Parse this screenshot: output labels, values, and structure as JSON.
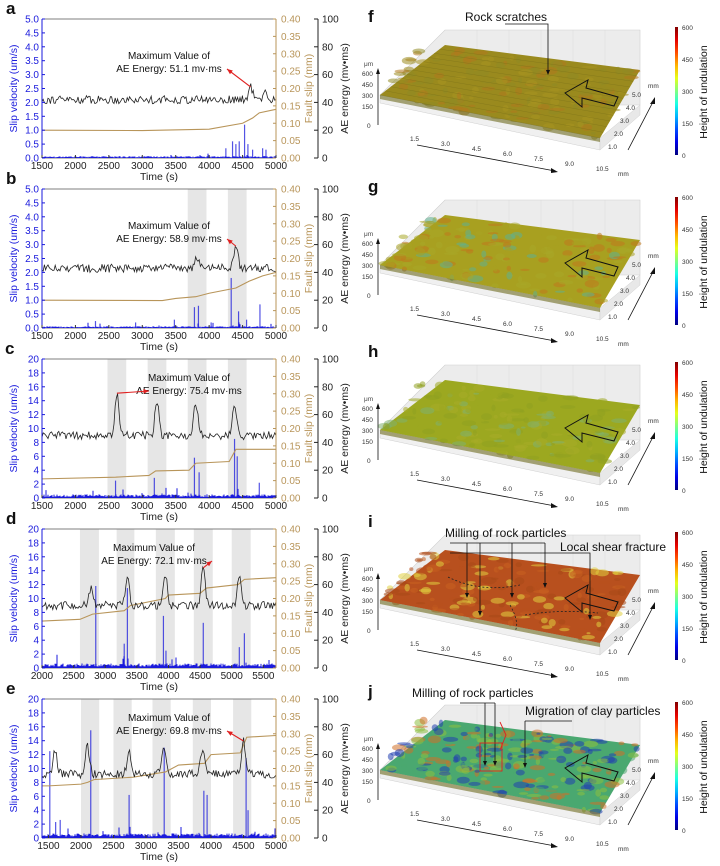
{
  "chart_data": [
    {
      "panel": "a",
      "type": "line",
      "title": "",
      "xlabel": "Time (s)",
      "ylabel_left": "Slip velocity (um/s)",
      "ylabel_right1": "Fault slip (mm)",
      "ylabel_right2": "AE energy (mv•ms)",
      "xlim": [
        1500,
        5000
      ],
      "x_ticks": [
        "1500",
        "2000",
        "2500",
        "3000",
        "3500",
        "4000",
        "4500",
        "5000"
      ],
      "ylim_left": [
        0,
        5.0
      ],
      "y_ticks_left": [
        "0.0",
        "0.5",
        "1.0",
        "1.5",
        "2.0",
        "2.5",
        "3.0",
        "3.5",
        "4.0",
        "4.5",
        "5.0"
      ],
      "ylim_right1": [
        0,
        0.4
      ],
      "y_ticks_right1": [
        "0.00",
        "0.05",
        "0.10",
        "0.15",
        "0.20",
        "0.25",
        "0.30",
        "0.35",
        "0.40"
      ],
      "ylim_right2": [
        0,
        100
      ],
      "y_ticks_right2": [
        "0",
        "20",
        "40",
        "60",
        "80",
        "100"
      ],
      "shaded_bands": [],
      "annotation": {
        "line1": "Maximum Value of",
        "line2": "AE Energy: 51.1 mv·ms",
        "peak_x": 4620,
        "peak_value": 51.1
      },
      "series": [
        {
          "name": "Slip velocity",
          "color": "#1a1adc",
          "baseline": 0.05,
          "spikes": [
            [
              4250,
              0.35
            ],
            [
              4350,
              0.6
            ],
            [
              4400,
              0.5
            ],
            [
              4450,
              0.6
            ],
            [
              4530,
              1.2
            ],
            [
              4580,
              0.5
            ],
            [
              4650,
              0.3
            ],
            [
              4800,
              0.35
            ],
            [
              4850,
              0.3
            ]
          ]
        },
        {
          "name": "AE energy",
          "color": "#222222",
          "mean": 42,
          "noise": 3,
          "peaks": [
            [
              4620,
              51.1
            ],
            [
              4830,
              47
            ]
          ]
        },
        {
          "name": "Fault slip",
          "color": "#b8955a",
          "points": [
            [
              1500,
              0.08
            ],
            [
              3000,
              0.079
            ],
            [
              4000,
              0.083
            ],
            [
              4500,
              0.1
            ],
            [
              4650,
              0.115
            ],
            [
              4750,
              0.13
            ],
            [
              5000,
              0.14
            ]
          ]
        }
      ]
    },
    {
      "panel": "b",
      "type": "line",
      "xlabel": "Time (s)",
      "ylabel_left": "Slip velocity (um/s)",
      "ylabel_right1": "Fault slip (mm)",
      "ylabel_right2": "AE energy (mv•ms)",
      "xlim": [
        1500,
        5000
      ],
      "x_ticks": [
        "1500",
        "2000",
        "2500",
        "3000",
        "3500",
        "4000",
        "4500",
        "5000"
      ],
      "ylim_left": [
        0,
        5.0
      ],
      "y_ticks_left": [
        "0.0",
        "0.5",
        "1.0",
        "1.5",
        "2.0",
        "2.5",
        "3.0",
        "3.5",
        "4.0",
        "4.5",
        "5.0"
      ],
      "ylim_right1": [
        0,
        0.4
      ],
      "y_ticks_right1": [
        "0.00",
        "0.05",
        "0.10",
        "0.15",
        "0.20",
        "0.25",
        "0.30",
        "0.35",
        "0.40"
      ],
      "ylim_right2": [
        0,
        100
      ],
      "y_ticks_right2": [
        "0",
        "20",
        "40",
        "60",
        "80",
        "100"
      ],
      "shaded_bands": [
        [
          3680,
          3960
        ],
        [
          4280,
          4560
        ]
      ],
      "annotation": {
        "line1": "Maximum Value of",
        "line2": "AE Energy: 58.9 mv·ms",
        "peak_x": 4400,
        "peak_value": 58.9
      },
      "series": [
        {
          "name": "Slip velocity",
          "color": "#1a1adc",
          "baseline": 0.05,
          "spikes": [
            [
              2300,
              0.25
            ],
            [
              2900,
              0.2
            ],
            [
              3480,
              0.3
            ],
            [
              3780,
              0.75
            ],
            [
              3840,
              0.8
            ],
            [
              4030,
              0.2
            ],
            [
              4330,
              1.8
            ],
            [
              4440,
              0.6
            ],
            [
              4560,
              0.3
            ],
            [
              4760,
              0.85
            ]
          ]
        },
        {
          "name": "AE energy",
          "color": "#222222",
          "mean": 43,
          "noise": 3,
          "peaks": [
            [
              3810,
              52
            ],
            [
              4400,
              58.9
            ]
          ]
        },
        {
          "name": "Fault slip",
          "color": "#b8955a",
          "points": [
            [
              1500,
              0.08
            ],
            [
              3300,
              0.079
            ],
            [
              3500,
              0.085
            ],
            [
              3800,
              0.09
            ],
            [
              4000,
              0.1
            ],
            [
              4400,
              0.115
            ],
            [
              4600,
              0.135
            ],
            [
              4800,
              0.15
            ],
            [
              5000,
              0.16
            ]
          ]
        }
      ]
    },
    {
      "panel": "c",
      "type": "line",
      "xlabel": "Time (s)",
      "ylabel_left": "Slip velocity (um/s)",
      "ylabel_right1": "Fault slip (mm)",
      "ylabel_right2": "AE energy (mv•ms)",
      "xlim": [
        1500,
        5000
      ],
      "x_ticks": [
        "1500",
        "2000",
        "2500",
        "3000",
        "3500",
        "4000",
        "4500",
        "5000"
      ],
      "ylim_left": [
        0,
        20
      ],
      "y_ticks_left": [
        "0",
        "2",
        "4",
        "6",
        "8",
        "10",
        "12",
        "14",
        "16",
        "18",
        "20"
      ],
      "ylim_right1": [
        0,
        0.4
      ],
      "y_ticks_right1": [
        "0.00",
        "0.05",
        "0.10",
        "0.15",
        "0.20",
        "0.25",
        "0.30",
        "0.35",
        "0.40"
      ],
      "ylim_right2": [
        0,
        100
      ],
      "y_ticks_right2": [
        "0",
        "20",
        "40",
        "60",
        "80",
        "100"
      ],
      "shaded_bands": [
        [
          2480,
          2760
        ],
        [
          3080,
          3360
        ],
        [
          3680,
          3960
        ],
        [
          4280,
          4560
        ]
      ],
      "annotation": {
        "line1": "Maximum Value of",
        "line2": "AE Energy: 75.4 mv·ms",
        "peak_x": 2620,
        "peak_value": 75.4
      },
      "series": [
        {
          "name": "Slip velocity",
          "color": "#1a1adc",
          "baseline": 0.4,
          "spikes": [
            [
              2600,
              2.5
            ],
            [
              3180,
              2.9
            ],
            [
              3780,
              5.8
            ],
            [
              3850,
              3.7
            ],
            [
              4380,
              8.5
            ],
            [
              4420,
              6
            ],
            [
              4750,
              2.2
            ]
          ]
        },
        {
          "name": "AE energy",
          "color": "#222222",
          "mean": 45,
          "noise": 3,
          "peaks": [
            [
              2620,
              75.4
            ],
            [
              3220,
              70
            ],
            [
              3800,
              69
            ],
            [
              4380,
              67
            ]
          ]
        },
        {
          "name": "Fault slip",
          "color": "#b8955a",
          "points": [
            [
              1500,
              0.055
            ],
            [
              2600,
              0.06
            ],
            [
              3100,
              0.065
            ],
            [
              3200,
              0.078
            ],
            [
              3700,
              0.08
            ],
            [
              3800,
              0.1
            ],
            [
              4300,
              0.105
            ],
            [
              4400,
              0.14
            ],
            [
              5000,
              0.14
            ]
          ]
        }
      ]
    },
    {
      "panel": "d",
      "type": "line",
      "xlabel": "Time (s)",
      "ylabel_left": "Slip velocity (um/s)",
      "ylabel_right1": "Fault slip (mm)",
      "ylabel_right2": "AE energy (mv•ms)",
      "xlim": [
        2000,
        5700
      ],
      "x_ticks": [
        "2000",
        "2500",
        "3000",
        "3500",
        "4000",
        "4500",
        "5000",
        "5500"
      ],
      "ylim_left": [
        0,
        20
      ],
      "y_ticks_left": [
        "0",
        "2",
        "4",
        "6",
        "8",
        "10",
        "12",
        "14",
        "16",
        "18",
        "20"
      ],
      "ylim_right1": [
        0,
        0.4
      ],
      "y_ticks_right1": [
        "0.00",
        "0.05",
        "0.10",
        "0.15",
        "0.20",
        "0.25",
        "0.30",
        "0.35",
        "0.40"
      ],
      "ylim_right2": [
        0,
        100
      ],
      "y_ticks_right2": [
        "0",
        "20",
        "40",
        "60",
        "80",
        "100"
      ],
      "shaded_bands": [
        [
          2600,
          2900
        ],
        [
          3180,
          3460
        ],
        [
          3800,
          4100
        ],
        [
          4400,
          4700
        ],
        [
          5000,
          5300
        ]
      ],
      "annotation": {
        "line1": "Maximum Value of",
        "line2": "AE Energy: 72.1 mv·ms",
        "peak_x": 4550,
        "peak_value": 72.1
      },
      "series": [
        {
          "name": "Slip velocity",
          "color": "#1a1adc",
          "baseline": 0.5,
          "spikes": [
            [
              2850,
              11.8
            ],
            [
              3350,
              11.5
            ],
            [
              3300,
              3.5
            ],
            [
              3920,
              7.5
            ],
            [
              3960,
              2.5
            ],
            [
              4550,
              6.5
            ],
            [
              5120,
              3
            ],
            [
              5200,
              5
            ]
          ]
        },
        {
          "name": "AE energy",
          "color": "#222222",
          "mean": 45,
          "noise": 3,
          "peaks": [
            [
              2780,
              58
            ],
            [
              3350,
              65
            ],
            [
              3950,
              67
            ],
            [
              4550,
              72.1
            ],
            [
              5120,
              65
            ]
          ]
        },
        {
          "name": "Fault slip",
          "color": "#b8955a",
          "points": [
            [
              2000,
              0.135
            ],
            [
              2600,
              0.14
            ],
            [
              2800,
              0.155
            ],
            [
              3300,
              0.165
            ],
            [
              3400,
              0.18
            ],
            [
              3950,
              0.2
            ],
            [
              4000,
              0.21
            ],
            [
              4500,
              0.215
            ],
            [
              4600,
              0.23
            ],
            [
              5100,
              0.24
            ],
            [
              5200,
              0.255
            ],
            [
              5700,
              0.26
            ]
          ]
        }
      ]
    },
    {
      "panel": "e",
      "type": "line",
      "xlabel": "Time (s)",
      "ylabel_left": "Slip velocity (um/s)",
      "ylabel_right1": "Fault slip (mm)",
      "ylabel_right2": "AE energy (mv•ms)",
      "xlim": [
        1400,
        5000
      ],
      "x_ticks": [
        "1500",
        "2000",
        "2500",
        "3000",
        "3500",
        "4000",
        "4500",
        "5000"
      ],
      "ylim_left": [
        0,
        20
      ],
      "y_ticks_left": [
        "0",
        "2",
        "4",
        "6",
        "8",
        "10",
        "12",
        "14",
        "16",
        "18",
        "20"
      ],
      "ylim_right1": [
        0,
        0.4
      ],
      "y_ticks_right1": [
        "0.00",
        "0.05",
        "0.10",
        "0.15",
        "0.20",
        "0.25",
        "0.30",
        "0.35",
        "0.40"
      ],
      "ylim_right2": [
        0,
        100
      ],
      "y_ticks_right2": [
        "0",
        "20",
        "40",
        "60",
        "80",
        "100"
      ],
      "shaded_bands": [
        [
          2000,
          2280
        ],
        [
          2500,
          2780
        ],
        [
          3100,
          3380
        ],
        [
          3720,
          4000
        ],
        [
          4340,
          4620
        ]
      ],
      "annotation": {
        "line1": "Maximum Value of",
        "line2": "AE Energy: 69.8 mv·ms",
        "peak_x": 4500,
        "peak_value": 69.8
      },
      "series": [
        {
          "name": "Slip velocity",
          "color": "#1a1adc",
          "baseline": 0.5,
          "spikes": [
            [
              1520,
              12.5
            ],
            [
              1610,
              2.3
            ],
            [
              1680,
              2.6
            ],
            [
              2150,
              15.5
            ],
            [
              2740,
              6.2
            ],
            [
              3280,
              13
            ],
            [
              3890,
              6.8
            ],
            [
              3940,
              6.2
            ],
            [
              4540,
              11.5
            ],
            [
              4570,
              4
            ]
          ]
        },
        {
          "name": "AE energy",
          "color": "#222222",
          "mean": 46,
          "noise": 3,
          "peaks": [
            [
              1600,
              63
            ],
            [
              2100,
              66
            ],
            [
              2740,
              64
            ],
            [
              3270,
              66
            ],
            [
              3870,
              65
            ],
            [
              4500,
              69.8
            ]
          ]
        },
        {
          "name": "Fault slip",
          "color": "#b8955a",
          "points": [
            [
              1400,
              0.15
            ],
            [
              1500,
              0.15
            ],
            [
              2000,
              0.155
            ],
            [
              2100,
              0.16
            ],
            [
              2200,
              0.168
            ],
            [
              2800,
              0.175
            ],
            [
              3300,
              0.19
            ],
            [
              3500,
              0.21
            ],
            [
              3900,
              0.215
            ],
            [
              4000,
              0.24
            ],
            [
              4450,
              0.245
            ],
            [
              4550,
              0.29
            ],
            [
              5000,
              0.295
            ]
          ]
        }
      ]
    }
  ],
  "surfaces": [
    {
      "panel": "f",
      "palette": "scratches",
      "callouts": [
        "Rock scratches"
      ]
    },
    {
      "panel": "g",
      "palette": "mottled",
      "callouts": []
    },
    {
      "panel": "h",
      "palette": "smooth",
      "callouts": []
    },
    {
      "panel": "i",
      "palette": "fractured",
      "callouts": [
        "Milling of rock particles",
        "Local shear fracture"
      ]
    },
    {
      "panel": "j",
      "palette": "rough",
      "callouts": [
        "Milling of rock particles",
        "Migration of clay particles"
      ]
    }
  ],
  "surface_axes": {
    "z_unit": "μm",
    "z_ticks": [
      "0",
      "150",
      "300",
      "450",
      "600"
    ],
    "x_ticks": [
      "1.5",
      "3.0",
      "4.5",
      "6.0",
      "7.5",
      "9.0",
      "10.5"
    ],
    "x_unit": "mm",
    "y_ticks": [
      "1.0",
      "2.0",
      "3.0",
      "4.0",
      "5.0"
    ],
    "y_unit": "mm",
    "colorbar_label": "Height of undulation",
    "colorbar_ticks": [
      "0",
      "150",
      "300",
      "450",
      "600"
    ]
  },
  "colors": {
    "slip_velocity": "#1a1adc",
    "fault_slip": "#b8955a",
    "ae_energy": "#222222",
    "annotation_arrow": "#e02020",
    "band": "#e6e6e6"
  }
}
